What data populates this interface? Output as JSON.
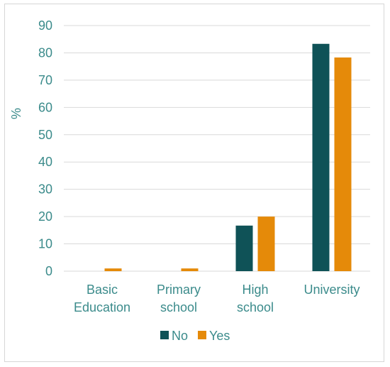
{
  "chart_data": {
    "type": "bar",
    "categories": [
      [
        "Basic",
        "Education"
      ],
      [
        "Primary",
        "school"
      ],
      [
        "High",
        "school"
      ],
      [
        "University"
      ]
    ],
    "series": [
      {
        "name": "No",
        "values": [
          0,
          0,
          16.7,
          83.3
        ],
        "color": "#0f5257"
      },
      {
        "name": "Yes",
        "values": [
          1,
          1,
          20,
          78.3
        ],
        "color": "#e58a09"
      }
    ],
    "title": "",
    "xlabel": "",
    "ylabel": "%",
    "ylim": [
      0,
      90
    ],
    "yticks": [
      0,
      10,
      20,
      30,
      40,
      50,
      60,
      70,
      80,
      90
    ],
    "grid": true,
    "legend_position": "bottom",
    "colors": {
      "grid": "#d9d9d9",
      "text": "#3b8b8b",
      "border": "#d6d6d6"
    }
  }
}
